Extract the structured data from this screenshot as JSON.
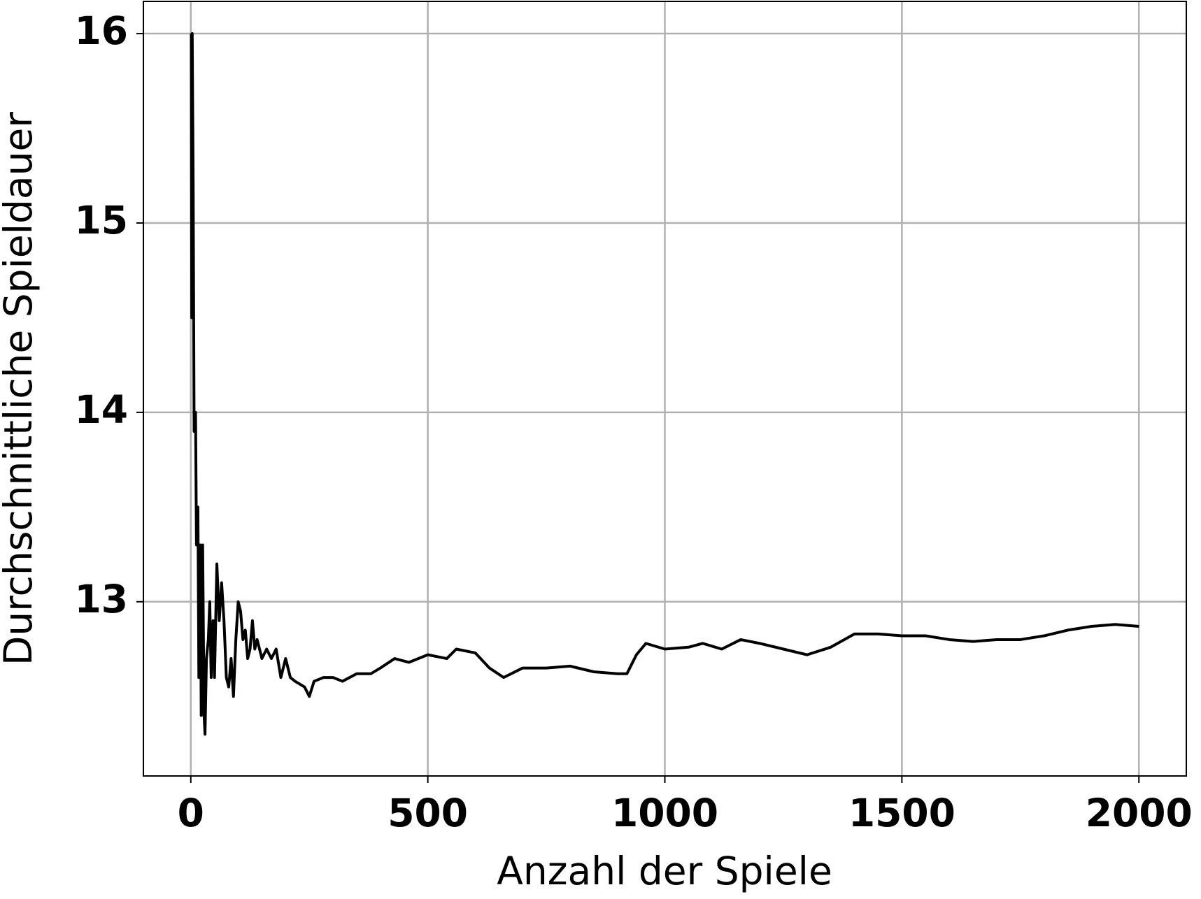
{
  "chart_data": {
    "type": "line",
    "xlabel": "Anzahl der Spiele",
    "ylabel": "Durchschnittliche Spieldauer",
    "xlim": [
      -100,
      2100
    ],
    "ylim": [
      12.08,
      16.17
    ],
    "xticks": [
      0,
      500,
      1000,
      1500,
      2000
    ],
    "yticks": [
      13,
      14,
      15,
      16
    ],
    "grid": true,
    "series": [
      {
        "name": null,
        "color": "#000000",
        "x": [
          1,
          2,
          3,
          5,
          7,
          10,
          12,
          15,
          17,
          20,
          22,
          25,
          28,
          30,
          33,
          37,
          40,
          43,
          47,
          50,
          55,
          60,
          65,
          70,
          75,
          80,
          85,
          90,
          95,
          100,
          105,
          110,
          115,
          120,
          125,
          130,
          135,
          140,
          150,
          160,
          170,
          180,
          190,
          200,
          210,
          220,
          240,
          250,
          260,
          280,
          300,
          320,
          350,
          380,
          400,
          430,
          460,
          500,
          540,
          560,
          600,
          630,
          660,
          700,
          750,
          800,
          850,
          900,
          920,
          940,
          960,
          1000,
          1050,
          1080,
          1120,
          1160,
          1200,
          1250,
          1300,
          1350,
          1400,
          1450,
          1500,
          1550,
          1600,
          1650,
          1700,
          1750,
          1800,
          1850,
          1900,
          1950,
          2000
        ],
        "values": [
          16.0,
          14.5,
          16.0,
          15.2,
          13.9,
          14.0,
          13.3,
          13.5,
          12.6,
          13.3,
          12.4,
          13.3,
          12.4,
          12.3,
          12.7,
          12.8,
          13.0,
          12.6,
          12.9,
          12.6,
          13.2,
          12.9,
          13.1,
          12.9,
          12.6,
          12.55,
          12.7,
          12.5,
          12.8,
          13.0,
          12.95,
          12.8,
          12.85,
          12.7,
          12.75,
          12.9,
          12.75,
          12.8,
          12.7,
          12.75,
          12.7,
          12.75,
          12.6,
          12.7,
          12.6,
          12.58,
          12.55,
          12.5,
          12.58,
          12.6,
          12.6,
          12.58,
          12.62,
          12.62,
          12.65,
          12.7,
          12.68,
          12.72,
          12.7,
          12.75,
          12.73,
          12.65,
          12.6,
          12.65,
          12.65,
          12.66,
          12.63,
          12.62,
          12.62,
          12.72,
          12.78,
          12.75,
          12.76,
          12.78,
          12.75,
          12.8,
          12.78,
          12.75,
          12.72,
          12.76,
          12.83,
          12.83,
          12.82,
          12.82,
          12.8,
          12.79,
          12.8,
          12.8,
          12.82,
          12.85,
          12.87,
          12.88,
          12.87
        ]
      }
    ]
  }
}
